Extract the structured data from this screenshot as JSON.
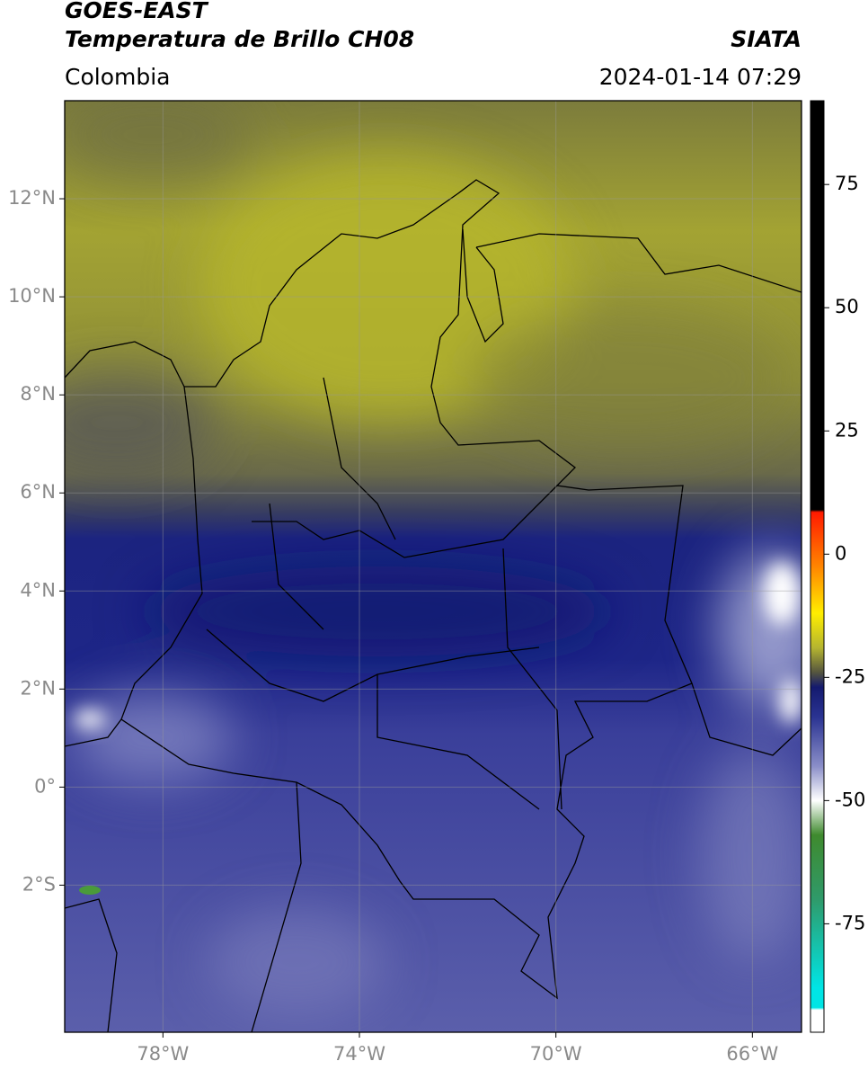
{
  "header": {
    "title": "GOES-EAST",
    "subtitle": "Temperatura de Brillo CH08",
    "source": "SIATA",
    "region": "Colombia",
    "datetime": "2024-01-14 07:29"
  },
  "map": {
    "lonlim": [
      -80,
      -65
    ],
    "latlim": [
      -5,
      14
    ],
    "lonticks": [
      {
        "value": -78,
        "label": "78°W"
      },
      {
        "value": -74,
        "label": "74°W"
      },
      {
        "value": -70,
        "label": "70°W"
      },
      {
        "value": -66,
        "label": "66°W"
      }
    ],
    "latticks": [
      {
        "value": 12,
        "label": "12°N"
      },
      {
        "value": 10,
        "label": "10°N"
      },
      {
        "value": 8,
        "label": "8°N"
      },
      {
        "value": 6,
        "label": "6°N"
      },
      {
        "value": 4,
        "label": "4°N"
      },
      {
        "value": 2,
        "label": "2°N"
      },
      {
        "value": 0,
        "label": "0°"
      },
      {
        "value": -2,
        "label": "2°S"
      }
    ],
    "grid": true
  },
  "colorbar": {
    "lim": [
      -97,
      92
    ],
    "ticks": [
      75,
      50,
      25,
      0,
      -25,
      -50,
      -75
    ],
    "stops": [
      {
        "value": 92,
        "color": "#000000"
      },
      {
        "value": 9,
        "color": "#000000"
      },
      {
        "value": 8.5,
        "color": "#ff1a00"
      },
      {
        "value": -3,
        "color": "#ff8a00"
      },
      {
        "value": -12,
        "color": "#ffee00"
      },
      {
        "value": -19,
        "color": "#b5b530"
      },
      {
        "value": -24,
        "color": "#55553f"
      },
      {
        "value": -27,
        "color": "#141a6e"
      },
      {
        "value": -33,
        "color": "#2a3392"
      },
      {
        "value": -43,
        "color": "#8a8ec8"
      },
      {
        "value": -50,
        "color": "#ffffff"
      },
      {
        "value": -57,
        "color": "#3f8a2e"
      },
      {
        "value": -70,
        "color": "#2f9a6a"
      },
      {
        "value": -88,
        "color": "#00e5e5"
      },
      {
        "value": -92,
        "color": "#00e5e5"
      },
      {
        "value": -92.5,
        "color": "#ffffff"
      },
      {
        "value": -97,
        "color": "#ffffff"
      }
    ]
  }
}
